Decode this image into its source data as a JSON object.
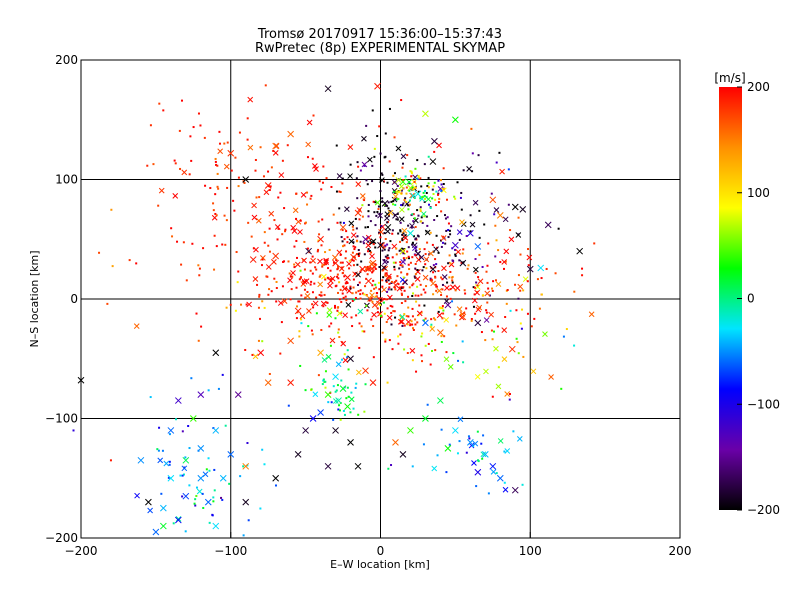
{
  "chart_data": {
    "type": "scatter",
    "title": "Tromsø 20170917 15:36:00–15:37:43",
    "subtitle": "RwPretec (8p) EXPERIMENTAL SKYMAP",
    "xlabel": "E–W location [km]",
    "ylabel": "N–S location [km]",
    "xlim": [
      -200,
      200
    ],
    "ylim": [
      -200,
      200
    ],
    "xticks": [
      "−200",
      "−100",
      "0",
      "100",
      "200"
    ],
    "yticks": [
      "200",
      "100",
      "0",
      "−100",
      "−200"
    ],
    "grid": true,
    "colorbar": {
      "label": "[m/s]",
      "range": [
        -200,
        200
      ],
      "ticks": [
        "200",
        "100",
        "0",
        "−100",
        "−200"
      ],
      "colormap": [
        "#000000",
        "#6a00a8",
        "#0000ff",
        "#00e5ff",
        "#00ff00",
        "#ffff00",
        "#ff9000",
        "#ff0000"
      ]
    },
    "markers": "x = large-symbol vectors, dots = small-symbol vectors; colour = line-of-sight velocity",
    "points": [
      {
        "x": -2,
        "y": 178,
        "v": 190,
        "m": "x"
      },
      {
        "x": -35,
        "y": 176,
        "v": -190,
        "m": "x"
      },
      {
        "x": 30,
        "y": 155,
        "v": 70,
        "m": "x"
      },
      {
        "x": 50,
        "y": 150,
        "v": 30,
        "m": "x"
      },
      {
        "x": -60,
        "y": 138,
        "v": 160,
        "m": "x"
      },
      {
        "x": -70,
        "y": 128,
        "v": 160,
        "m": "x"
      },
      {
        "x": -100,
        "y": 122,
        "v": 180,
        "m": "x"
      },
      {
        "x": 36,
        "y": 132,
        "v": -180,
        "m": "x"
      },
      {
        "x": 35,
        "y": 115,
        "v": -200,
        "m": "x"
      },
      {
        "x": -90,
        "y": 100,
        "v": -200,
        "m": "x"
      },
      {
        "x": -75,
        "y": 95,
        "v": 190,
        "m": "x"
      },
      {
        "x": 20,
        "y": 93,
        "v": 70,
        "m": "x"
      },
      {
        "x": 15,
        "y": 98,
        "v": 40,
        "m": "x"
      },
      {
        "x": 25,
        "y": 88,
        "v": -20,
        "m": "x"
      },
      {
        "x": 90,
        "y": 77,
        "v": -200,
        "m": "x"
      },
      {
        "x": 75,
        "y": 83,
        "v": 170,
        "m": "x"
      },
      {
        "x": 95,
        "y": 75,
        "v": -190,
        "m": "x"
      },
      {
        "x": 112,
        "y": 62,
        "v": -170,
        "m": "x"
      },
      {
        "x": 133,
        "y": 40,
        "v": -200,
        "m": "x"
      },
      {
        "x": 100,
        "y": 25,
        "v": -180,
        "m": "x"
      },
      {
        "x": 107,
        "y": 26,
        "v": -30,
        "m": "x"
      },
      {
        "x": 60,
        "y": 55,
        "v": -110,
        "m": "x"
      },
      {
        "x": 65,
        "y": 44,
        "v": -60,
        "m": "x"
      },
      {
        "x": 80,
        "y": 70,
        "v": 150,
        "m": "x"
      },
      {
        "x": 50,
        "y": 45,
        "v": -120,
        "m": "x"
      },
      {
        "x": 55,
        "y": 30,
        "v": -190,
        "m": "x"
      },
      {
        "x": -25,
        "y": 60,
        "v": 170,
        "m": "x"
      },
      {
        "x": -15,
        "y": 72,
        "v": 180,
        "m": "x"
      },
      {
        "x": -40,
        "y": 50,
        "v": 190,
        "m": "x"
      },
      {
        "x": -70,
        "y": 36,
        "v": 180,
        "m": "x"
      },
      {
        "x": -85,
        "y": 33,
        "v": 190,
        "m": "x"
      },
      {
        "x": -48,
        "y": 40,
        "v": -180,
        "m": "x"
      },
      {
        "x": -30,
        "y": 30,
        "v": 190,
        "m": "x"
      },
      {
        "x": -12,
        "y": 25,
        "v": 195,
        "m": "x"
      },
      {
        "x": -8,
        "y": 15,
        "v": 190,
        "m": "x"
      },
      {
        "x": -18,
        "y": 35,
        "v": 180,
        "m": "x"
      },
      {
        "x": -5,
        "y": 30,
        "v": 170,
        "m": "x"
      },
      {
        "x": -22,
        "y": 18,
        "v": 195,
        "m": "x"
      },
      {
        "x": 0,
        "y": 45,
        "v": -190,
        "m": "x"
      },
      {
        "x": 5,
        "y": 60,
        "v": -200,
        "m": "x"
      },
      {
        "x": 10,
        "y": 70,
        "v": -180,
        "m": "x"
      },
      {
        "x": 3,
        "y": 80,
        "v": -190,
        "m": "x"
      },
      {
        "x": 15,
        "y": 40,
        "v": 80,
        "m": "x"
      },
      {
        "x": 20,
        "y": 55,
        "v": -20,
        "m": "x"
      },
      {
        "x": -10,
        "y": 50,
        "v": -150,
        "m": "x"
      },
      {
        "x": 35,
        "y": 25,
        "v": -190,
        "m": "x"
      },
      {
        "x": 45,
        "y": -5,
        "v": -150,
        "m": "x"
      },
      {
        "x": 55,
        "y": -15,
        "v": 170,
        "m": "x"
      },
      {
        "x": 65,
        "y": -20,
        "v": -180,
        "m": "x"
      },
      {
        "x": 30,
        "y": -20,
        "v": -60,
        "m": "x"
      },
      {
        "x": 40,
        "y": -28,
        "v": 160,
        "m": "x"
      },
      {
        "x": 88,
        "y": -42,
        "v": 180,
        "m": "x"
      },
      {
        "x": -55,
        "y": -10,
        "v": 190,
        "m": "x"
      },
      {
        "x": -60,
        "y": -35,
        "v": 170,
        "m": "x"
      },
      {
        "x": -80,
        "y": -45,
        "v": 200,
        "m": "x"
      },
      {
        "x": -110,
        "y": -45,
        "v": -200,
        "m": "x"
      },
      {
        "x": -40,
        "y": -45,
        "v": 130,
        "m": "x"
      },
      {
        "x": -20,
        "y": -50,
        "v": -190,
        "m": "x"
      },
      {
        "x": -10,
        "y": -60,
        "v": 180,
        "m": "x"
      },
      {
        "x": -5,
        "y": -70,
        "v": 190,
        "m": "x"
      },
      {
        "x": -30,
        "y": -65,
        "v": -30,
        "m": "x"
      },
      {
        "x": -25,
        "y": -75,
        "v": 20,
        "m": "x"
      },
      {
        "x": -35,
        "y": -80,
        "v": 40,
        "m": "x"
      },
      {
        "x": -28,
        "y": -85,
        "v": -10,
        "m": "x"
      },
      {
        "x": -22,
        "y": -90,
        "v": 30,
        "m": "x"
      },
      {
        "x": -40,
        "y": -95,
        "v": -70,
        "m": "x"
      },
      {
        "x": -45,
        "y": -100,
        "v": -90,
        "m": "x"
      },
      {
        "x": -50,
        "y": -110,
        "v": -180,
        "m": "x"
      },
      {
        "x": -30,
        "y": -110,
        "v": -190,
        "m": "x"
      },
      {
        "x": -20,
        "y": -120,
        "v": -200,
        "m": "x"
      },
      {
        "x": -55,
        "y": -130,
        "v": -190,
        "m": "x"
      },
      {
        "x": -35,
        "y": -140,
        "v": -180,
        "m": "x"
      },
      {
        "x": -70,
        "y": -150,
        "v": -200,
        "m": "x"
      },
      {
        "x": -90,
        "y": -170,
        "v": -190,
        "m": "x"
      },
      {
        "x": -15,
        "y": -140,
        "v": -200,
        "m": "x"
      },
      {
        "x": -60,
        "y": -70,
        "v": 190,
        "m": "x"
      },
      {
        "x": -75,
        "y": -70,
        "v": 160,
        "m": "x"
      },
      {
        "x": -95,
        "y": -80,
        "v": -150,
        "m": "x"
      },
      {
        "x": -120,
        "y": -80,
        "v": -130,
        "m": "x"
      },
      {
        "x": -135,
        "y": -85,
        "v": -120,
        "m": "x"
      },
      {
        "x": -125,
        "y": -100,
        "v": 40,
        "m": "x"
      },
      {
        "x": -140,
        "y": -110,
        "v": -60,
        "m": "x"
      },
      {
        "x": -110,
        "y": -110,
        "v": -40,
        "m": "x"
      },
      {
        "x": -120,
        "y": -125,
        "v": -50,
        "m": "x"
      },
      {
        "x": -130,
        "y": -135,
        "v": 10,
        "m": "x"
      },
      {
        "x": -100,
        "y": -130,
        "v": -60,
        "m": "x"
      },
      {
        "x": -90,
        "y": -140,
        "v": 150,
        "m": "x"
      },
      {
        "x": -105,
        "y": -150,
        "v": -40,
        "m": "x"
      },
      {
        "x": -120,
        "y": -150,
        "v": -50,
        "m": "x"
      },
      {
        "x": -140,
        "y": -150,
        "v": -30,
        "m": "x"
      },
      {
        "x": -130,
        "y": -165,
        "v": -70,
        "m": "x"
      },
      {
        "x": -115,
        "y": -170,
        "v": -60,
        "m": "x"
      },
      {
        "x": -145,
        "y": -175,
        "v": -40,
        "m": "x"
      },
      {
        "x": -135,
        "y": -185,
        "v": -90,
        "m": "x"
      },
      {
        "x": -150,
        "y": -195,
        "v": -60,
        "m": "x"
      },
      {
        "x": -145,
        "y": -190,
        "v": 20,
        "m": "x"
      },
      {
        "x": -110,
        "y": -190,
        "v": -30,
        "m": "x"
      },
      {
        "x": -160,
        "y": -135,
        "v": -50,
        "m": "x"
      },
      {
        "x": -200,
        "y": -68,
        "v": -200,
        "m": "x"
      },
      {
        "x": 50,
        "y": -110,
        "v": -30,
        "m": "x"
      },
      {
        "x": 60,
        "y": -120,
        "v": -50,
        "m": "x"
      },
      {
        "x": 70,
        "y": -130,
        "v": -40,
        "m": "x"
      },
      {
        "x": 75,
        "y": -140,
        "v": -80,
        "m": "x"
      },
      {
        "x": 80,
        "y": -150,
        "v": -60,
        "m": "x"
      },
      {
        "x": 90,
        "y": -160,
        "v": -170,
        "m": "x"
      },
      {
        "x": 65,
        "y": -145,
        "v": -100,
        "m": "x"
      },
      {
        "x": 45,
        "y": -125,
        "v": 30,
        "m": "x"
      },
      {
        "x": 30,
        "y": -100,
        "v": 20,
        "m": "x"
      },
      {
        "x": 20,
        "y": -110,
        "v": 40,
        "m": "x"
      },
      {
        "x": 15,
        "y": -130,
        "v": -190,
        "m": "x"
      },
      {
        "x": 40,
        "y": -85,
        "v": 10,
        "m": "x"
      },
      {
        "x": 10,
        "y": -120,
        "v": 160,
        "m": "x"
      },
      {
        "x": -155,
        "y": -170,
        "v": -200,
        "m": "x"
      },
      {
        "x": -180,
        "y": -135,
        "v": 190,
        "m": "dot"
      },
      {
        "x": -205,
        "y": -110,
        "v": -110,
        "m": "dot"
      }
    ],
    "clusters": [
      {
        "cx": -12,
        "cy": 15,
        "sx": 35,
        "sy": 18,
        "n": 260,
        "v": 195,
        "vs": 15
      },
      {
        "cx": -45,
        "cy": 55,
        "sx": 55,
        "sy": 45,
        "n": 220,
        "v": 185,
        "vs": 20
      },
      {
        "cx": -100,
        "cy": 110,
        "sx": 30,
        "sy": 30,
        "n": 60,
        "v": 185,
        "vs": 15
      },
      {
        "cx": 5,
        "cy": 60,
        "sx": 18,
        "sy": 35,
        "n": 180,
        "v": -190,
        "vs": 15
      },
      {
        "cx": 40,
        "cy": 60,
        "sx": 30,
        "sy": 35,
        "n": 140,
        "v": -170,
        "vs": 40
      },
      {
        "cx": 20,
        "cy": 90,
        "sx": 12,
        "sy": 10,
        "n": 80,
        "v": 60,
        "vs": 50
      },
      {
        "cx": 50,
        "cy": 15,
        "sx": 40,
        "sy": 25,
        "n": 150,
        "v": 170,
        "vs": 30
      },
      {
        "cx": -20,
        "cy": -5,
        "sx": 40,
        "sy": 25,
        "n": 120,
        "v": 150,
        "vs": 80
      },
      {
        "cx": -30,
        "cy": -75,
        "sx": 10,
        "sy": 15,
        "n": 50,
        "v": 10,
        "vs": 40
      },
      {
        "cx": -120,
        "cy": -145,
        "sx": 18,
        "sy": 30,
        "n": 70,
        "v": -50,
        "vs": 40
      },
      {
        "cx": 60,
        "cy": -30,
        "sx": 40,
        "sy": 30,
        "n": 80,
        "v": 120,
        "vs": 90
      },
      {
        "cx": 60,
        "cy": -125,
        "sx": 20,
        "sy": 15,
        "n": 40,
        "v": -40,
        "vs": 40
      }
    ]
  }
}
